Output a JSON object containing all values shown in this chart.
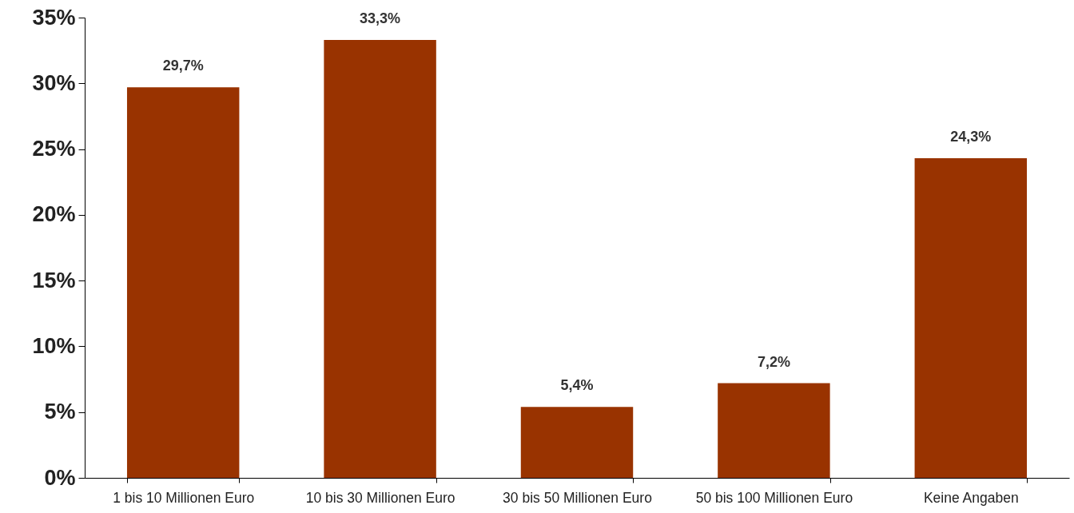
{
  "chart_data": {
    "type": "bar",
    "categories": [
      "1 bis 10 Millionen Euro",
      "10 bis 30 Millionen Euro",
      "30 bis 50 Millionen Euro",
      "50 bis 100 Millionen Euro",
      "Keine Angaben"
    ],
    "values": [
      29.7,
      33.3,
      5.4,
      7.2,
      24.3
    ],
    "value_labels": [
      "29,7%",
      "33,3%",
      "5,4%",
      "7,2%",
      "24,3%"
    ],
    "color": "#993300",
    "ylim": [
      0,
      35
    ],
    "yticks": [
      {
        "value": 0,
        "label": "0%"
      },
      {
        "value": 5,
        "label": "5%"
      },
      {
        "value": 10,
        "label": "10%"
      },
      {
        "value": 15,
        "label": "15%"
      },
      {
        "value": 20,
        "label": "20%"
      },
      {
        "value": 25,
        "label": "25%"
      },
      {
        "value": 30,
        "label": "30%"
      },
      {
        "value": 35,
        "label": "35%"
      }
    ],
    "grid": false
  }
}
